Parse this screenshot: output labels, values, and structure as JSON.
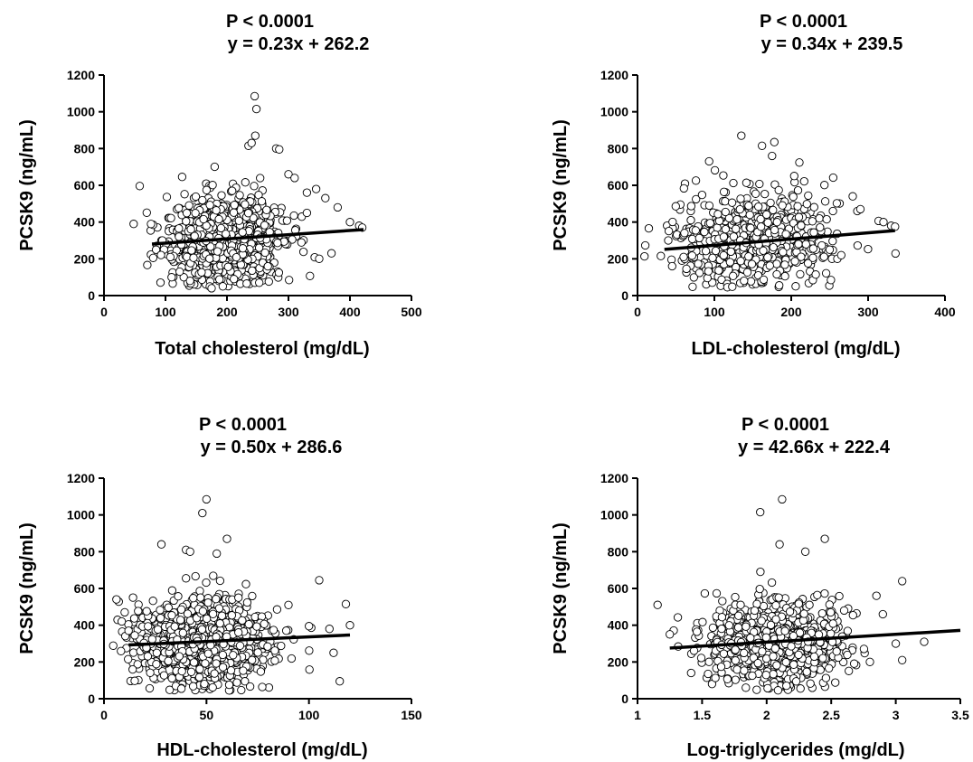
{
  "chart_data": [
    {
      "type": "scatter",
      "title": [
        "P < 0.0001",
        "y = 0.23x + 262.2"
      ],
      "xlabel": "Total cholesterol (mg/dL)",
      "ylabel": "PCSK9 (ng/mL)",
      "xlim": [
        0,
        500
      ],
      "ylim": [
        0,
        1200
      ],
      "xticks": [
        "0",
        "100",
        "200",
        "300",
        "400",
        "500"
      ],
      "yticks": [
        "0",
        "200",
        "400",
        "600",
        "800",
        "1000",
        "1200"
      ],
      "regression": {
        "slope": 0.23,
        "intercept": 262.2,
        "x_range": [
          78,
          422
        ]
      },
      "marker_color": "#000000",
      "cloud": {
        "center_x": 200,
        "spread_x": 45,
        "center_y": 305,
        "spread_y": 110,
        "count": 1100
      },
      "series": [
        {
          "x": [
            245,
            248,
            246,
            235,
            240,
            280,
            285,
            300,
            310,
            330,
            360,
            400,
            415,
            420,
            80,
            95,
            350,
            370,
            110,
            140,
            175,
            380,
            330,
            345
          ],
          "y": [
            1085,
            1015,
            870,
            815,
            830,
            800,
            795,
            660,
            640,
            560,
            530,
            400,
            380,
            370,
            205,
            300,
            200,
            230,
            100,
            80,
            40,
            480,
            450,
            580
          ]
        }
      ]
    },
    {
      "type": "scatter",
      "title": [
        "P < 0.0001",
        "y = 0.34x + 239.5"
      ],
      "xlabel": "LDL-cholesterol (mg/dL)",
      "ylabel": "PCSK9 (ng/mL)",
      "xlim": [
        0,
        400
      ],
      "ylim": [
        0,
        1200
      ],
      "xticks": [
        "0",
        "100",
        "200",
        "300",
        "400"
      ],
      "yticks": [
        "0",
        "200",
        "400",
        "600",
        "800",
        "1000",
        "1200"
      ],
      "regression": {
        "slope": 0.34,
        "intercept": 239.5,
        "x_range": [
          35,
          335
        ]
      },
      "marker_color": "#000000",
      "cloud": {
        "center_x": 150,
        "spread_x": 50,
        "center_y": 300,
        "spread_y": 130,
        "count": 650
      },
      "series": [
        {
          "x": [
            135,
            162,
            175,
            178,
            280,
            290,
            320,
            330,
            335,
            40,
            45,
            60,
            250,
            260,
            265
          ],
          "y": [
            870,
            815,
            760,
            835,
            540,
            470,
            400,
            380,
            375,
            300,
            160,
            210,
            250,
            200,
            220
          ]
        }
      ]
    },
    {
      "type": "scatter",
      "title": [
        "P < 0.0001",
        "y = 0.50x + 286.6"
      ],
      "xlabel": "HDL-cholesterol (mg/dL)",
      "ylabel": "PCSK9 (ng/mL)",
      "xlim": [
        0,
        150
      ],
      "ylim": [
        0,
        1200
      ],
      "xticks": [
        "0",
        "50",
        "100",
        "150"
      ],
      "yticks": [
        "0",
        "200",
        "400",
        "600",
        "800",
        "1000",
        "1200"
      ],
      "regression": {
        "slope": 0.5,
        "intercept": 286.6,
        "x_range": [
          12,
          120
        ]
      },
      "marker_color": "#000000",
      "cloud": {
        "center_x": 48,
        "spread_x": 16,
        "center_y": 305,
        "spread_y": 110,
        "count": 1100
      },
      "series": [
        {
          "x": [
            50,
            48,
            28,
            40,
            42,
            60,
            55,
            105,
            118,
            120,
            115,
            100,
            12,
            15,
            90,
            110,
            112
          ],
          "y": [
            1085,
            1010,
            840,
            810,
            800,
            870,
            790,
            645,
            515,
            400,
            95,
            395,
            370,
            345,
            510,
            380,
            250
          ]
        }
      ]
    },
    {
      "type": "scatter",
      "title": [
        "P < 0.0001",
        "y = 42.66x + 222.4"
      ],
      "xlabel": "Log-triglycerides (mg/dL)",
      "ylabel": "PCSK9 (ng/mL)",
      "xlim": [
        1,
        3.5
      ],
      "ylim": [
        0,
        1200
      ],
      "xticks": [
        "1",
        "1.5",
        "2",
        "2.5",
        "3",
        "3.5"
      ],
      "yticks": [
        "0",
        "200",
        "400",
        "600",
        "800",
        "1000",
        "1200"
      ],
      "regression": {
        "slope": 42.66,
        "intercept": 222.4,
        "x_range": [
          1.25,
          3.5
        ]
      },
      "marker_color": "#000000",
      "cloud": {
        "center_x": 2.05,
        "spread_x": 0.25,
        "center_y": 305,
        "spread_y": 110,
        "count": 1100
      },
      "series": [
        {
          "x": [
            2.12,
            1.95,
            2.1,
            2.3,
            2.45,
            3.05,
            3.22,
            2.85,
            3.0,
            1.25,
            2.6,
            2.9,
            3.05,
            2.8
          ],
          "y": [
            1085,
            1015,
            840,
            800,
            870,
            640,
            310,
            560,
            300,
            350,
            480,
            460,
            210,
            200
          ]
        }
      ]
    }
  ]
}
